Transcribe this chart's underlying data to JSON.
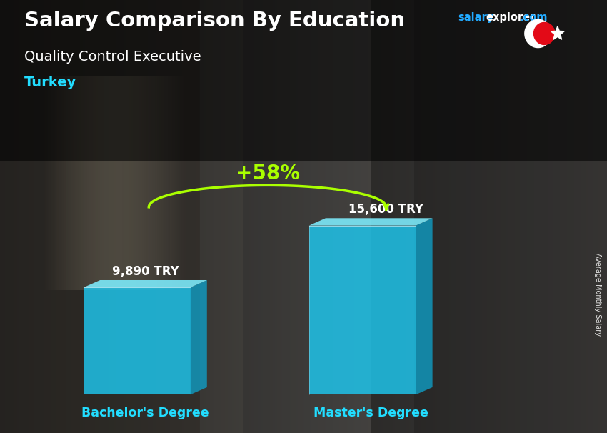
{
  "title": "Salary Comparison By Education",
  "subtitle": "Quality Control Executive",
  "country": "Turkey",
  "categories": [
    "Bachelor's Degree",
    "Master's Degree"
  ],
  "values": [
    9890,
    15600
  ],
  "value_labels": [
    "9,890 TRY",
    "15,600 TRY"
  ],
  "pct_change": "+58%",
  "bar_color_front": "#1EC8F0",
  "bar_color_top": "#7EEEFF",
  "bar_color_side": "#0FA0C8",
  "ylabel": "Average Monthly Salary",
  "title_color": "#FFFFFF",
  "subtitle_color": "#FFFFFF",
  "country_color": "#22DDFF",
  "salary_color": "#FFFFFF",
  "pct_color": "#AAFF00",
  "xlabel_color": "#22DDFF",
  "website_color_salary": "#22AAFF",
  "website_color_explorer": "#FFFFFF",
  "website_color_com": "#22AAFF",
  "flag_color": "#E30A17",
  "bg_dark": "#1a1a1a",
  "bar1_x": 2.0,
  "bar2_x": 5.8,
  "bar_width": 1.8,
  "xlim": [
    0,
    9.0
  ],
  "ylim": [
    -0.5,
    7.0
  ],
  "bar1_height": 3.2,
  "bar2_height": 5.05
}
